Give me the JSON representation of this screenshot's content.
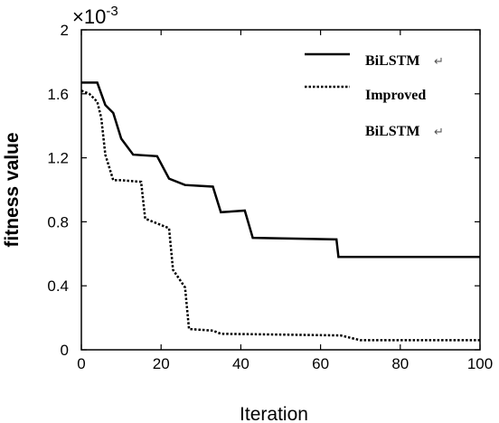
{
  "chart_data": {
    "type": "line",
    "xlabel": "Iteration",
    "ylabel": "fitness value",
    "y_multiplier": "×10",
    "y_multiplier_exp": "-3",
    "xlim": [
      0,
      100
    ],
    "ylim": [
      0,
      2
    ],
    "xticks": [
      0,
      20,
      40,
      60,
      80,
      100
    ],
    "xtick_labels": [
      "0",
      "20",
      "40",
      "60",
      "80",
      "100"
    ],
    "yticks": [
      0,
      0.4,
      0.8,
      1.2,
      1.6,
      2
    ],
    "ytick_labels": [
      "0",
      "0.4",
      "0.8",
      "1.2",
      "1.6",
      "2"
    ],
    "grid": false,
    "legend_position": "top-right",
    "return_mark": "↵",
    "series": [
      {
        "name": "BiLSTM",
        "style": "solid",
        "color": "#000000",
        "x": [
          0,
          4,
          6,
          8,
          10,
          13,
          19,
          22,
          26,
          33,
          35,
          41,
          43,
          64,
          64.5,
          100
        ],
        "y": [
          1.67,
          1.67,
          1.53,
          1.48,
          1.32,
          1.22,
          1.21,
          1.07,
          1.03,
          1.02,
          0.86,
          0.87,
          0.7,
          0.69,
          0.58,
          0.58
        ]
      },
      {
        "name_lines": [
          "Improved",
          "BiLSTM"
        ],
        "style": "dotted",
        "color": "#000000",
        "x": [
          0,
          2,
          4,
          5,
          6,
          8,
          10,
          15,
          16,
          22,
          23,
          26,
          27,
          33,
          35,
          65,
          70,
          100
        ],
        "y": [
          1.62,
          1.6,
          1.55,
          1.45,
          1.22,
          1.06,
          1.06,
          1.05,
          0.82,
          0.76,
          0.5,
          0.39,
          0.13,
          0.12,
          0.1,
          0.09,
          0.06,
          0.06
        ]
      }
    ]
  }
}
